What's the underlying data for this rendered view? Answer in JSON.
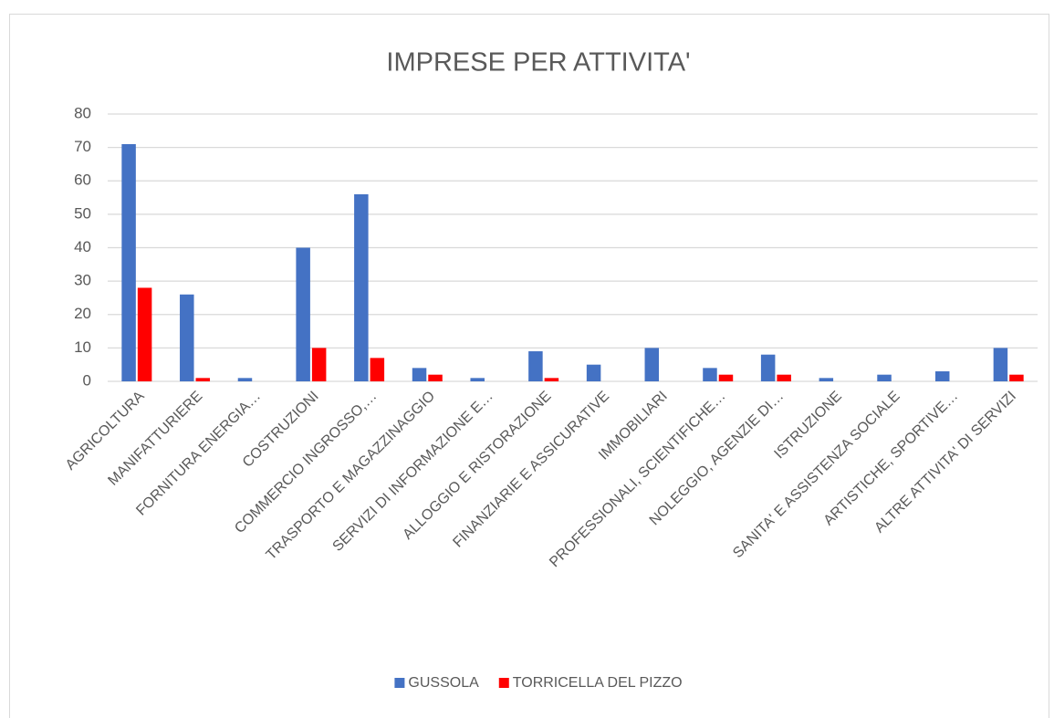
{
  "chart_data": {
    "type": "bar",
    "title": "IMPRESE PER ATTIVITA'",
    "categories": [
      "AGRICOLTURA",
      "MANIFATTURIERE",
      "FORNITURA ENERGIA…",
      "COSTRUZIONI",
      "COMMERCIO INGROSSO,…",
      "TRASPORTO E MAGAZZINAGGIO",
      "SERVIZI DI INFORMAZIONE E…",
      "ALLOGGIO E RISTORAZIONE",
      "FINANZIARIE E ASSICURATIVE",
      "IMMOBILIARI",
      "PROFESSIONALI, SCIENTIFICHE…",
      "NOLEGGIO, AGENZIE DI…",
      "ISTRUZIONE",
      "SANITA' E ASSISTENZA SOCIALE",
      "ARTISTICHE, SPORTIVE…",
      "ALTRE ATTIVITA' DI SERVIZI"
    ],
    "series": [
      {
        "name": "GUSSOLA",
        "color": "#4472c4",
        "values": [
          71,
          26,
          1,
          40,
          56,
          4,
          1,
          9,
          5,
          10,
          4,
          8,
          1,
          2,
          3,
          10
        ]
      },
      {
        "name": "TORRICELLA DEL PIZZO",
        "color": "#ff0000",
        "values": [
          28,
          1,
          0,
          10,
          7,
          2,
          0,
          1,
          0,
          0,
          2,
          2,
          0,
          0,
          0,
          2
        ]
      }
    ],
    "ylim": [
      0,
      80
    ],
    "yticks": [
      0,
      10,
      20,
      30,
      40,
      50,
      60,
      70,
      80
    ],
    "grid": true,
    "legend": "bottom"
  }
}
